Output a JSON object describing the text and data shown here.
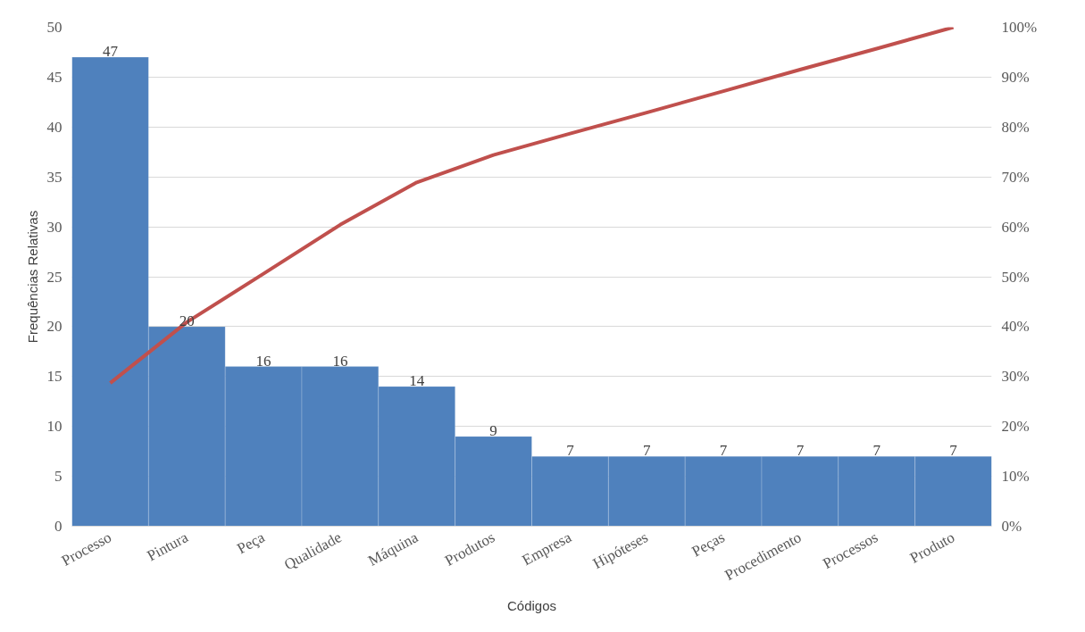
{
  "chart_data": {
    "type": "bar",
    "xlabel": "Códigos",
    "ylabel": "Frequências Relativas",
    "categories": [
      "Processo",
      "Pintura",
      "Peça",
      "Qualidade",
      "Máquina",
      "Produtos",
      "Empresa",
      "Hipóteses",
      "Peças",
      "Procedimento",
      "Processos",
      "Produto"
    ],
    "series": [
      {
        "color": "#4f81bd",
        "data_labels": true,
        "values": [
          47,
          20,
          16,
          16,
          14,
          9,
          7,
          7,
          7,
          7,
          7,
          7
        ]
      },
      {
        "type": "line",
        "axis": "y2",
        "color": "#c0504d",
        "values": [
          28.7,
          40.9,
          50.6,
          60.4,
          68.9,
          74.4,
          78.7,
          82.9,
          87.2,
          91.5,
          95.7,
          100
        ]
      }
    ],
    "ylim": [
      0,
      50
    ],
    "yticks": [
      0,
      5,
      10,
      15,
      20,
      25,
      30,
      35,
      40,
      45,
      50
    ],
    "y2lim": [
      0,
      100
    ],
    "y2ticks": [
      {
        "value": 0,
        "label": "0%"
      },
      {
        "value": 10,
        "label": "10%"
      },
      {
        "value": 20,
        "label": "20%"
      },
      {
        "value": 30,
        "label": "30%"
      },
      {
        "value": 40,
        "label": "40%"
      },
      {
        "value": 50,
        "label": "50%"
      },
      {
        "value": 60,
        "label": "60%"
      },
      {
        "value": 70,
        "label": "70%"
      },
      {
        "value": 80,
        "label": "80%"
      },
      {
        "value": 90,
        "label": "90%"
      },
      {
        "value": 100,
        "label": "100%"
      }
    ],
    "grid": "y",
    "line_style": "solid",
    "marker": "none"
  }
}
